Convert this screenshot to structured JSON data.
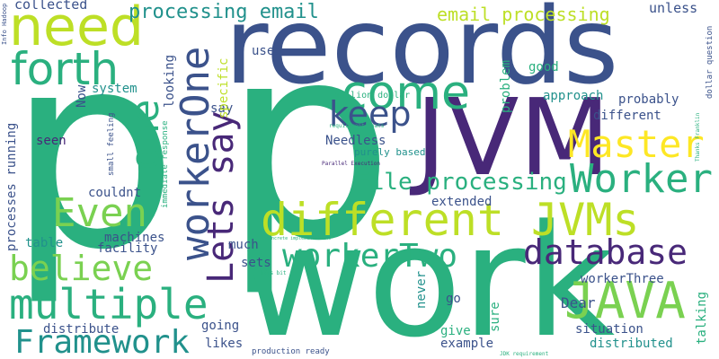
{
  "palette": {
    "dark_navy": "#3b528b",
    "dark_purple": "#482878",
    "teal": "#21918c",
    "green": "#2ab07f",
    "lime": "#7ad151",
    "yellow_green": "#bddf26",
    "yellow": "#fde725"
  },
  "words": {
    "p1": "p",
    "p2": "p",
    "records": "records",
    "work": "work",
    "JVM": "JVM",
    "need": "need",
    "forth": "forth",
    "come": "come",
    "keep": "keep",
    "Master": "Master",
    "Worker": "Worker",
    "different_jvms": "different JVMs",
    "database": "database",
    "workerTwo": "workerTwo",
    "multiple": "multiple",
    "believe": "believe",
    "Framework": "Framework",
    "JAVA": "JAVA",
    "Even": "Even",
    "File_processing": "File processing",
    "processing_email": "processing email",
    "email_processing": "email processing",
    "lets_say": "Lets say",
    "workerOne": "workerOne",
    "one": "one",
    "collected": "collected",
    "unless": "unless",
    "used": "used",
    "good": "good",
    "approach": "approach",
    "probably": "probably",
    "different": "different",
    "million_dollar": "million dollar",
    "problem": "problem",
    "specific": "specific",
    "looking": "looking",
    "system": "system",
    "Now": "Now",
    "say": "say",
    "seen": "seen",
    "Needless": "Needless",
    "purely_based": "purely based",
    "couldnt": "couldnt",
    "extended": "extended",
    "table": "table",
    "machines": "machines",
    "facility": "facility",
    "much": "much",
    "sets": "sets",
    "workerThree": "workerThree",
    "Dear": "Dear",
    "never": "never",
    "go": "go",
    "sure": "sure",
    "give": "give",
    "talking": "talking",
    "situation": "situation",
    "example": "example",
    "distributed": "distributed",
    "distribute": "distribute",
    "going": "going",
    "likes": "likes",
    "production_ready": "production ready",
    "processes_running": "processes running",
    "small_feeling": "small feeling",
    "immediate_response": "immediate response",
    "info_hadoop": "Info Hadoop",
    "dollar_question": "dollar question",
    "thanks_franklin": "Thanks Franklin",
    "requirement_thats": "requirement Thats",
    "parallel_execution": "Parallel Execution",
    "concrete_implementations": "concrete implementations",
    "thats_bit": "Thats bit",
    "jdk_requirement": "JDK requirement"
  }
}
